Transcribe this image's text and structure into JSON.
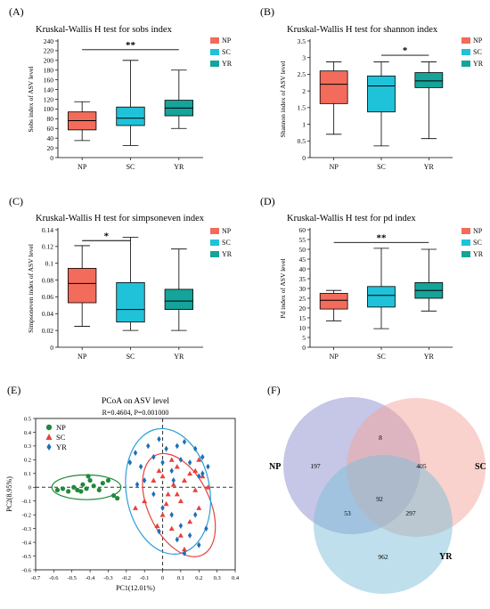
{
  "chart_data": [
    {
      "type": "boxplot",
      "panel_label": "(A)",
      "title": "Kruskal-Wallis H test for sobs index",
      "ylabel": "Sobs index of ASV level",
      "ylim": [
        0,
        240
      ],
      "yticks": [
        0,
        20,
        40,
        60,
        80,
        100,
        120,
        140,
        160,
        180,
        200,
        220,
        240
      ],
      "categories": [
        "NP",
        "SC",
        "YR"
      ],
      "boxes": [
        {
          "name": "NP",
          "min": 35,
          "q1": 57,
          "median": 76,
          "q3": 94,
          "max": 115
        },
        {
          "name": "SC",
          "min": 25,
          "q1": 66,
          "median": 81,
          "q3": 104,
          "max": 200
        },
        {
          "name": "YR",
          "min": 60,
          "q1": 86,
          "median": 102,
          "q3": 118,
          "max": 180
        }
      ],
      "significance": [
        {
          "from": "NP",
          "to": "YR",
          "label": "**",
          "y": 222
        }
      ],
      "legend": [
        "NP",
        "SC",
        "YR"
      ]
    },
    {
      "type": "boxplot",
      "panel_label": "(B)",
      "title": "Kruskal-Wallis H test for shannon index",
      "ylabel": "Shannon index of ASV level",
      "ylim": [
        0,
        3.5
      ],
      "yticks": [
        0,
        0.5,
        1,
        1.5,
        2,
        2.5,
        3,
        3.5
      ],
      "categories": [
        "NP",
        "SC",
        "YR"
      ],
      "boxes": [
        {
          "name": "NP",
          "min": 0.7,
          "q1": 1.62,
          "median": 2.2,
          "q3": 2.6,
          "max": 2.87
        },
        {
          "name": "SC",
          "min": 0.35,
          "q1": 1.37,
          "median": 2.15,
          "q3": 2.45,
          "max": 2.87
        },
        {
          "name": "YR",
          "min": 0.57,
          "q1": 2.1,
          "median": 2.3,
          "q3": 2.55,
          "max": 2.87
        }
      ],
      "significance": [
        {
          "from": "SC",
          "to": "YR",
          "label": "*",
          "y": 3.07
        }
      ],
      "legend": [
        "NP",
        "SC",
        "YR"
      ]
    },
    {
      "type": "boxplot",
      "panel_label": "(C)",
      "title": "Kruskal-Wallis H test for simpsoneven index",
      "ylabel": "Simpsoneven index of ASV level",
      "ylim": [
        0,
        0.14
      ],
      "yticks": [
        0,
        0.02,
        0.04,
        0.06,
        0.08,
        0.1,
        0.12,
        0.14
      ],
      "categories": [
        "NP",
        "SC",
        "YR"
      ],
      "boxes": [
        {
          "name": "NP",
          "min": 0.025,
          "q1": 0.053,
          "median": 0.076,
          "q3": 0.094,
          "max": 0.121
        },
        {
          "name": "SC",
          "min": 0.02,
          "q1": 0.03,
          "median": 0.045,
          "q3": 0.077,
          "max": 0.131
        },
        {
          "name": "YR",
          "min": 0.02,
          "q1": 0.045,
          "median": 0.055,
          "q3": 0.069,
          "max": 0.117
        }
      ],
      "significance": [
        {
          "from": "NP",
          "to": "SC",
          "label": "*",
          "y": 0.127
        }
      ],
      "legend": [
        "NP",
        "SC",
        "YR"
      ]
    },
    {
      "type": "boxplot",
      "panel_label": "(D)",
      "title": "Kruskal-Wallis H test for pd index",
      "ylabel": "Pd index of ASV level",
      "ylim": [
        0,
        60
      ],
      "yticks": [
        0,
        5,
        10,
        15,
        20,
        25,
        30,
        35,
        40,
        45,
        50,
        55,
        60
      ],
      "categories": [
        "NP",
        "SC",
        "YR"
      ],
      "boxes": [
        {
          "name": "NP",
          "min": 13.5,
          "q1": 19.5,
          "median": 24,
          "q3": 27.5,
          "max": 29
        },
        {
          "name": "SC",
          "min": 9.5,
          "q1": 20.5,
          "median": 26.5,
          "q3": 31,
          "max": 50.5
        },
        {
          "name": "YR",
          "min": 18.5,
          "q1": 25,
          "median": 29,
          "q3": 33,
          "max": 50
        }
      ],
      "significance": [
        {
          "from": "NP",
          "to": "YR",
          "label": "**",
          "y": 53.5
        }
      ],
      "legend": [
        "NP",
        "SC",
        "YR"
      ]
    },
    {
      "type": "scatter",
      "panel_label": "(E)",
      "title": "PCoA on ASV level",
      "subtitle": "R=0.4604, P=0.001000",
      "xlabel": "PC1(12.01%)",
      "ylabel": "PC2(8.95%)",
      "xlim": [
        -0.7,
        0.4
      ],
      "ylim": [
        -0.6,
        0.5
      ],
      "xticks": [
        -0.7,
        -0.6,
        -0.5,
        -0.4,
        -0.3,
        -0.2,
        -0.1,
        0,
        0.1,
        0.2,
        0.3,
        0.4
      ],
      "yticks": [
        -0.6,
        -0.5,
        -0.4,
        -0.3,
        -0.2,
        -0.1,
        0,
        0.1,
        0.2,
        0.3,
        0.4,
        0.5
      ],
      "series": [
        {
          "name": "NP",
          "marker": "circle",
          "color": "#1e8a3a",
          "points": [
            [
              -0.58,
              -0.02
            ],
            [
              -0.55,
              -0.01
            ],
            [
              -0.52,
              -0.03
            ],
            [
              -0.49,
              0.0
            ],
            [
              -0.47,
              -0.02
            ],
            [
              -0.44,
              0.02
            ],
            [
              -0.42,
              -0.01
            ],
            [
              -0.4,
              0.05
            ],
            [
              -0.41,
              0.08
            ],
            [
              -0.38,
              0.01
            ],
            [
              -0.35,
              -0.02
            ],
            [
              -0.33,
              0.03
            ],
            [
              -0.3,
              0.05
            ],
            [
              -0.27,
              -0.06
            ],
            [
              -0.25,
              -0.08
            ],
            [
              -0.45,
              -0.03
            ]
          ]
        },
        {
          "name": "SC",
          "marker": "triangle",
          "color": "#e8413c",
          "points": [
            [
              -0.05,
              0.05
            ],
            [
              -0.02,
              0.12
            ],
            [
              0.03,
              -0.05
            ],
            [
              0.06,
              0.02
            ],
            [
              0.08,
              0.15
            ],
            [
              0.1,
              -0.1
            ],
            [
              0.12,
              0.05
            ],
            [
              0.15,
              0.1
            ],
            [
              0.18,
              -0.02
            ],
            [
              0.2,
              0.2
            ],
            [
              0.22,
              0.08
            ],
            [
              0.05,
              0.2
            ],
            [
              -0.1,
              -0.1
            ],
            [
              0.0,
              -0.2
            ],
            [
              0.05,
              -0.3
            ],
            [
              0.1,
              -0.35
            ],
            [
              0.15,
              -0.25
            ],
            [
              0.2,
              -0.15
            ],
            [
              0.02,
              -0.12
            ],
            [
              -0.15,
              -0.15
            ],
            [
              0.12,
              -0.45
            ],
            [
              0.25,
              0.0
            ],
            [
              0.08,
              -0.05
            ],
            [
              0.18,
              0.12
            ],
            [
              0.0,
              0.08
            ],
            [
              -0.03,
              -0.28
            ]
          ]
        },
        {
          "name": "YR",
          "marker": "diamond",
          "color": "#1f6fb5",
          "points": [
            [
              -0.18,
              0.18
            ],
            [
              -0.15,
              0.25
            ],
            [
              -0.12,
              0.15
            ],
            [
              -0.1,
              0.05
            ],
            [
              -0.08,
              0.3
            ],
            [
              -0.05,
              0.22
            ],
            [
              -0.02,
              0.35
            ],
            [
              0.0,
              0.18
            ],
            [
              0.02,
              0.28
            ],
            [
              0.05,
              0.12
            ],
            [
              0.08,
              0.3
            ],
            [
              0.1,
              0.2
            ],
            [
              0.12,
              0.33
            ],
            [
              0.15,
              0.18
            ],
            [
              0.18,
              0.28
            ],
            [
              0.2,
              0.08
            ],
            [
              0.22,
              0.22
            ],
            [
              0.25,
              0.15
            ],
            [
              -0.05,
              -0.05
            ],
            [
              0.0,
              -0.15
            ],
            [
              0.05,
              -0.2
            ],
            [
              0.1,
              -0.28
            ],
            [
              0.15,
              -0.35
            ],
            [
              0.2,
              -0.42
            ],
            [
              0.12,
              -0.48
            ],
            [
              0.08,
              -0.38
            ],
            [
              -0.02,
              -0.32
            ],
            [
              0.18,
              -0.2
            ],
            [
              0.24,
              -0.3
            ],
            [
              -0.14,
              0.02
            ],
            [
              0.06,
              0.05
            ],
            [
              0.22,
              0.1
            ]
          ]
        }
      ],
      "ellipses": [
        {
          "name": "NP",
          "color": "#1e8a3a",
          "cx": -0.42,
          "cy": 0.0,
          "rx": 0.19,
          "ry": 0.09,
          "angle": 0
        },
        {
          "name": "SC",
          "color": "#e8413c",
          "cx": 0.09,
          "cy": -0.13,
          "rx": 0.17,
          "ry": 0.4,
          "angle": -25
        },
        {
          "name": "YR",
          "color": "#2a9fd6",
          "cx": 0.03,
          "cy": -0.03,
          "rx": 0.23,
          "ry": 0.46,
          "angle": -10
        }
      ],
      "legend": [
        "NP",
        "SC",
        "YR"
      ]
    },
    {
      "type": "venn",
      "panel_label": "(F)",
      "sets": [
        {
          "name": "NP",
          "color": "#8e8ed0"
        },
        {
          "name": "SC",
          "color": "#f4a49c"
        },
        {
          "name": "YR",
          "color": "#7ec0d8"
        }
      ],
      "regions": {
        "NP_only": "197",
        "SC_only": "405",
        "YR_only": "962",
        "NP_SC": "8",
        "NP_YR": "53",
        "SC_YR": "297",
        "NP_SC_YR": "92"
      }
    }
  ],
  "colors": {
    "NP": "#f26b5b",
    "SC": "#1fc2d9",
    "YR": "#15a39a"
  }
}
